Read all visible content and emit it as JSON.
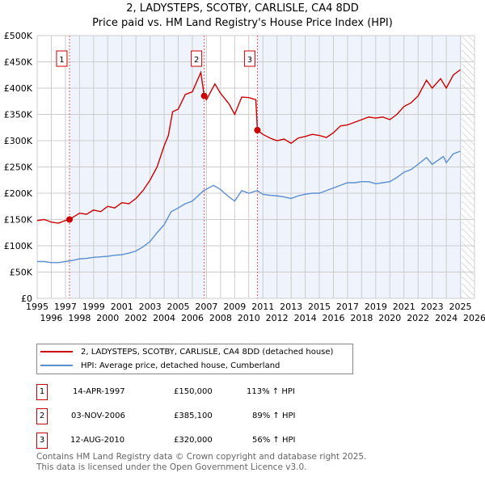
{
  "chart_data": {
    "type": "line",
    "title": "2, LADYSTEPS, SCOTBY, CARLISLE, CA4 8DD",
    "subtitle": "Price paid vs. HM Land Registry's House Price Index (HPI)",
    "xlim": [
      1995,
      2026
    ],
    "ylim": [
      0,
      500000
    ],
    "x_ticks": [
      "1995",
      "1996",
      "1997",
      "1998",
      "1999",
      "2000",
      "2001",
      "2002",
      "2003",
      "2004",
      "2005",
      "2006",
      "2007",
      "2008",
      "2009",
      "2010",
      "2011",
      "2012",
      "2013",
      "2014",
      "2015",
      "2016",
      "2017",
      "2018",
      "2019",
      "2020",
      "2021",
      "2022",
      "2023",
      "2024",
      "2025",
      "2026"
    ],
    "y_ticks": [
      {
        "v": 0,
        "label": "£0"
      },
      {
        "v": 50000,
        "label": "£50K"
      },
      {
        "v": 100000,
        "label": "£100K"
      },
      {
        "v": 150000,
        "label": "£150K"
      },
      {
        "v": 200000,
        "label": "£200K"
      },
      {
        "v": 250000,
        "label": "£250K"
      },
      {
        "v": 300000,
        "label": "£300K"
      },
      {
        "v": 350000,
        "label": "£350K"
      },
      {
        "v": 400000,
        "label": "£400K"
      },
      {
        "v": 450000,
        "label": "£450K"
      },
      {
        "v": 500000,
        "label": "£500K"
      }
    ],
    "grid": true,
    "series": [
      {
        "name": "2, LADYSTEPS, SCOTBY, CARLISLE, CA4 8DD (detached house)",
        "color": "#cc0000",
        "x": [
          1995,
          1995.5,
          1996,
          1996.5,
          1997,
          1997.29,
          1998,
          1998.5,
          1999,
          1999.5,
          2000,
          2000.5,
          2001,
          2001.5,
          2002,
          2002.5,
          2003,
          2003.5,
          2004,
          2004.3,
          2004.6,
          2005,
          2005.5,
          2006,
          2006.6,
          2006.84,
          2007,
          2007.6,
          2008,
          2008.6,
          2009,
          2009.5,
          2010,
          2010.5,
          2010.61,
          2011,
          2011.5,
          2012,
          2012.5,
          2013,
          2013.5,
          2014,
          2014.5,
          2015,
          2015.5,
          2016,
          2016.5,
          2017,
          2017.5,
          2018,
          2018.5,
          2019,
          2019.5,
          2020,
          2020.5,
          2021,
          2021.5,
          2022,
          2022.6,
          2023,
          2023.6,
          2024,
          2024.5,
          2025
        ],
        "y": [
          148000,
          150000,
          145000,
          143000,
          148000,
          150000,
          162000,
          160000,
          168000,
          165000,
          175000,
          172000,
          182000,
          180000,
          190000,
          205000,
          225000,
          250000,
          290000,
          310000,
          355000,
          360000,
          388000,
          393000,
          430000,
          385100,
          378000,
          408000,
          390000,
          370000,
          350000,
          383000,
          382000,
          378000,
          320000,
          312000,
          305000,
          300000,
          303000,
          295000,
          305000,
          308000,
          312000,
          310000,
          306000,
          315000,
          328000,
          330000,
          335000,
          340000,
          345000,
          343000,
          345000,
          340000,
          350000,
          365000,
          372000,
          385000,
          415000,
          400000,
          418000,
          400000,
          425000,
          435000
        ]
      },
      {
        "name": "HPI: Average price, detached house, Cumberland",
        "color": "#5b8fd1",
        "x": [
          1995,
          1995.5,
          1996,
          1996.5,
          1997,
          1997.5,
          1998,
          1998.5,
          1999,
          1999.5,
          2000,
          2000.5,
          2001,
          2001.5,
          2002,
          2002.5,
          2003,
          2003.5,
          2004,
          2004.5,
          2005,
          2005.5,
          2006,
          2006.8,
          2007.5,
          2008,
          2008.5,
          2009,
          2009.5,
          2010,
          2010.6,
          2011,
          2011.5,
          2012,
          2012.5,
          2013,
          2013.5,
          2014,
          2014.5,
          2015,
          2015.5,
          2016,
          2016.5,
          2017,
          2017.5,
          2018,
          2018.5,
          2019,
          2019.5,
          2020,
          2020.5,
          2021,
          2021.5,
          2022,
          2022.6,
          2023,
          2023.8,
          2024,
          2024.5,
          2025
        ],
        "y": [
          70000,
          70000,
          68000,
          68000,
          70000,
          72000,
          75000,
          76000,
          78000,
          79000,
          80000,
          82000,
          83000,
          86000,
          90000,
          98000,
          108000,
          125000,
          140000,
          165000,
          172000,
          180000,
          185000,
          205000,
          215000,
          207000,
          195000,
          185000,
          205000,
          200000,
          205000,
          198000,
          196000,
          195000,
          193000,
          190000,
          195000,
          198000,
          200000,
          200000,
          205000,
          210000,
          215000,
          220000,
          220000,
          222000,
          222000,
          218000,
          220000,
          222000,
          230000,
          240000,
          245000,
          255000,
          268000,
          255000,
          270000,
          258000,
          275000,
          280000
        ]
      }
    ],
    "sales": [
      {
        "n": "1",
        "x": 1997.29,
        "y": 150000,
        "date": "14-APR-1997",
        "price": "£150,000",
        "hpi": "113% ↑ HPI"
      },
      {
        "n": "2",
        "x": 2006.84,
        "y": 385100,
        "date": "03-NOV-2006",
        "price": "£385,100",
        "hpi": "89% ↑ HPI"
      },
      {
        "n": "3",
        "x": 2010.61,
        "y": 320000,
        "date": "12-AUG-2010",
        "price": "£320,000",
        "hpi": "56% ↑ HPI"
      }
    ],
    "hatched_from": 2025.1,
    "legend_placement": "below"
  },
  "footer": {
    "line1": "Contains HM Land Registry data © Crown copyright and database right 2025.",
    "line2": "This data is licensed under the Open Government Licence v3.0."
  }
}
